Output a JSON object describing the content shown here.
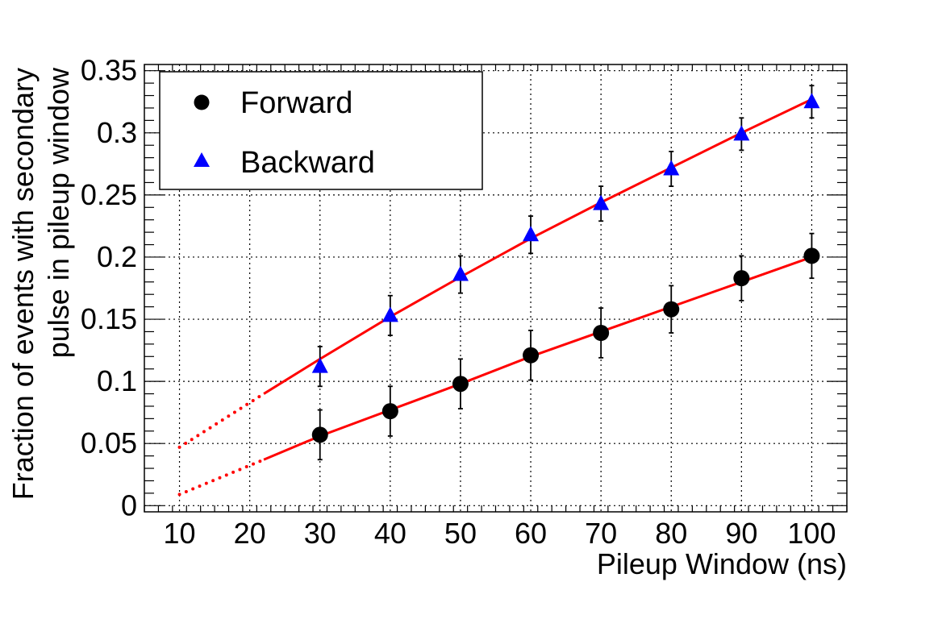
{
  "chart_data": {
    "type": "scatter",
    "title": "",
    "xlabel": "Pileup Window (ns)",
    "ylabel_lines": [
      "Fraction of events with secondary",
      "pulse in pileup window"
    ],
    "xlim": [
      5,
      105
    ],
    "ylim": [
      -0.005,
      0.355
    ],
    "x_ticks": [
      10,
      20,
      30,
      40,
      50,
      60,
      70,
      80,
      90,
      100
    ],
    "x_tick_labels": [
      "10",
      "20",
      "30",
      "40",
      "50",
      "60",
      "70",
      "80",
      "90",
      "100"
    ],
    "y_ticks": [
      0,
      0.05,
      0.1,
      0.15,
      0.2,
      0.25,
      0.3,
      0.35
    ],
    "y_tick_labels": [
      "0",
      "0.05",
      "0.1",
      "0.15",
      "0.2",
      "0.25",
      "0.3",
      "0.35"
    ],
    "grid": true,
    "legend_position": "top-left",
    "series": [
      {
        "name": "Forward",
        "marker": "circle",
        "color": "#000000",
        "x": [
          30,
          40,
          50,
          60,
          70,
          80,
          90,
          100
        ],
        "y": [
          0.057,
          0.076,
          0.098,
          0.121,
          0.139,
          0.158,
          0.183,
          0.201
        ],
        "yerr": [
          0.02,
          0.02,
          0.02,
          0.02,
          0.02,
          0.019,
          0.018,
          0.018
        ]
      },
      {
        "name": "Backward",
        "marker": "triangle",
        "color": "#0000ff",
        "x": [
          30,
          40,
          50,
          60,
          70,
          80,
          90,
          100
        ],
        "y": [
          0.112,
          0.153,
          0.186,
          0.218,
          0.243,
          0.271,
          0.299,
          0.325
        ],
        "yerr": [
          0.016,
          0.016,
          0.015,
          0.015,
          0.014,
          0.014,
          0.013,
          0.013
        ]
      }
    ],
    "fits": [
      {
        "color": "#ff0000",
        "x": [
          10,
          22,
          30,
          40,
          50,
          60,
          70,
          80,
          90,
          100
        ],
        "y": [
          0.009,
          0.037,
          0.056,
          0.077,
          0.098,
          0.12,
          0.14,
          0.16,
          0.18,
          0.2
        ],
        "solid_from": 22
      },
      {
        "color": "#ff0000",
        "x": [
          10,
          22,
          30,
          40,
          50,
          60,
          70,
          80,
          90,
          100
        ],
        "y": [
          0.047,
          0.09,
          0.118,
          0.152,
          0.184,
          0.215,
          0.244,
          0.272,
          0.3,
          0.327
        ],
        "solid_from": 22
      }
    ]
  }
}
